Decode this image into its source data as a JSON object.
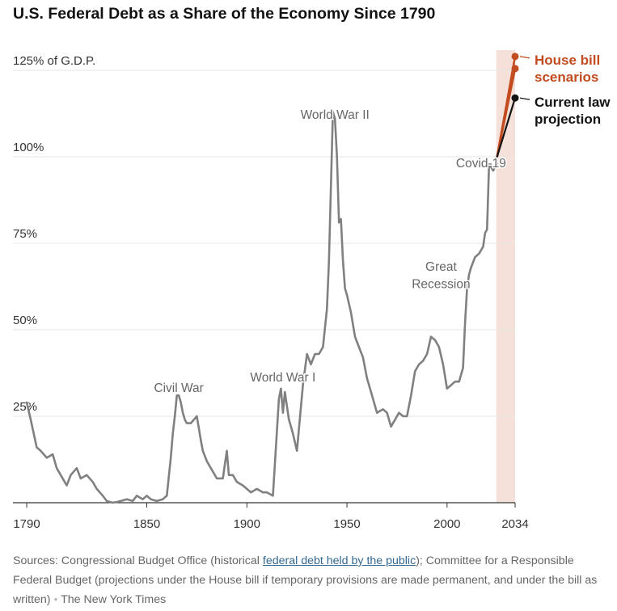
{
  "title": "U.S. Federal Debt as a Share of the Economy Since 1790",
  "chart_data": {
    "type": "line",
    "title": "U.S. Federal Debt as a Share of the Economy Since 1790",
    "xlabel": "",
    "ylabel": "",
    "xlim": [
      1790,
      2034
    ],
    "ylim": [
      0,
      130
    ],
    "x_ticks": [
      {
        "value": 1790,
        "label": "1790"
      },
      {
        "value": 1850,
        "label": "1850"
      },
      {
        "value": 1900,
        "label": "1900"
      },
      {
        "value": 1950,
        "label": "1950"
      },
      {
        "value": 2000,
        "label": "2000"
      },
      {
        "value": 2034,
        "label": "2034"
      }
    ],
    "y_ticks": [
      {
        "value": 25,
        "label": "25%"
      },
      {
        "value": 50,
        "label": "50%"
      },
      {
        "value": 75,
        "label": "75%"
      },
      {
        "value": 100,
        "label": "100%"
      },
      {
        "value": 125,
        "label": "125% of G.D.P."
      }
    ],
    "projection_shading": {
      "from": 2025,
      "to": 2034,
      "color": "#f6e1da"
    },
    "series": [
      {
        "color": "#808080",
        "x": [
          1790,
          1792,
          1795,
          1797,
          1800,
          1803,
          1805,
          1807,
          1810,
          1812,
          1815,
          1817,
          1820,
          1823,
          1825,
          1828,
          1830,
          1833,
          1835,
          1837,
          1840,
          1843,
          1845,
          1848,
          1850,
          1852,
          1855,
          1858,
          1860,
          1862,
          1863,
          1864,
          1865,
          1866,
          1867,
          1868,
          1869,
          1870,
          1872,
          1875,
          1877,
          1878,
          1880,
          1882,
          1885,
          1888,
          1890,
          1891,
          1892,
          1893,
          1895,
          1898,
          1900,
          1902,
          1905,
          1908,
          1910,
          1913,
          1916,
          1917,
          1918,
          1919,
          1920,
          1921,
          1922,
          1923,
          1925,
          1928,
          1930,
          1932,
          1934,
          1936,
          1938,
          1940,
          1941,
          1942,
          1943,
          1944,
          1945,
          1946,
          1947,
          1948,
          1949,
          1950,
          1952,
          1954,
          1956,
          1958,
          1960,
          1962,
          1965,
          1968,
          1970,
          1972,
          1974,
          1976,
          1978,
          1980,
          1982,
          1984,
          1986,
          1988,
          1990,
          1992,
          1994,
          1996,
          1998,
          2000,
          2002,
          2004,
          2006,
          2008,
          2009,
          2010,
          2011,
          2012,
          2014,
          2016,
          2018,
          2019,
          2020,
          2021,
          2022,
          2023,
          2024,
          2025
        ],
        "values": [
          29,
          24,
          16,
          15,
          13,
          14,
          10,
          8,
          5,
          8,
          10,
          7,
          8,
          6,
          4,
          2,
          0.5,
          0,
          0.2,
          0.5,
          1,
          0.5,
          2,
          1,
          2,
          1,
          0.5,
          1,
          2,
          13,
          20,
          25,
          31,
          31,
          29,
          26,
          24,
          23,
          23,
          25,
          18,
          15,
          12,
          10,
          7,
          7,
          15,
          8,
          8,
          8,
          6,
          5,
          4,
          3,
          4,
          3,
          3,
          2,
          30,
          33,
          26,
          32,
          28,
          24,
          22,
          20,
          15,
          34,
          43,
          40,
          43,
          43,
          45,
          56,
          70,
          92,
          113,
          111,
          100,
          81,
          82,
          70,
          62,
          60,
          55,
          48,
          45,
          42,
          36,
          32,
          26,
          27,
          26,
          22,
          24,
          26,
          25,
          25,
          31,
          38,
          40,
          41,
          43,
          48,
          47,
          45,
          40,
          33,
          34,
          35,
          35,
          39,
          52,
          62,
          66,
          68,
          71,
          72,
          74,
          78,
          79,
          98,
          97,
          96,
          97,
          98
        ]
      },
      {
        "name": "Current law projection",
        "color": "#121212",
        "x": [
          2025,
          2034
        ],
        "values": [
          100,
          117
        ]
      },
      {
        "name": "House bill scenarios",
        "color": "#c24b1f",
        "x": [
          2025,
          2034
        ],
        "values": [
          100,
          129
        ]
      },
      {
        "name": "House bill scenarios",
        "color": "#c24b1f",
        "x": [
          2025,
          2034
        ],
        "values": [
          100,
          125.5
        ]
      }
    ],
    "labels": [
      {
        "text": "Civil War",
        "x": 1866,
        "y": 32
      },
      {
        "text": "World War I",
        "x": 1918,
        "y": 35
      },
      {
        "text": "World War II",
        "x": 1944,
        "y": 111
      },
      {
        "text": "Great",
        "x": 1997,
        "y": 67
      },
      {
        "text": "Recession",
        "x": 1997,
        "y": 62
      },
      {
        "text": "Covid-19",
        "x": 2017,
        "y": 97
      }
    ],
    "legend": [
      {
        "lines": [
          "House bill",
          "scenarios"
        ],
        "color": "#c24b1f"
      },
      {
        "lines": [
          "Current law",
          "projection"
        ],
        "color": "#121212"
      }
    ]
  },
  "source": {
    "prefix": "Sources: Congressional Budget Office (historical ",
    "link": "federal debt held by the public",
    "suffix": "); Committee for a Responsible Federal Budget (projections under the House bill if temporary provisions are made permanent, and under the bill as written)",
    "dot": "•",
    "credit": "The New York Times"
  }
}
